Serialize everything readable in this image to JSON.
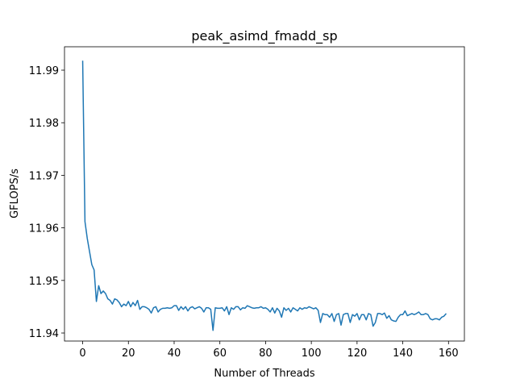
{
  "chart_data": {
    "type": "line",
    "title": "peak_asimd_fmadd_sp",
    "x_label": "Number of Threads",
    "y_label": "GFLOPS/s",
    "color": "#1f77b4",
    "x": [
      0,
      1,
      2,
      3,
      4,
      5,
      6,
      7,
      8,
      9,
      10,
      11,
      12,
      13,
      14,
      15,
      16,
      17,
      18,
      19,
      20,
      21,
      22,
      23,
      24,
      25,
      26,
      27,
      28,
      29,
      30,
      31,
      32,
      33,
      34,
      35,
      36,
      37,
      38,
      39,
      40,
      41,
      42,
      43,
      44,
      45,
      46,
      47,
      48,
      49,
      50,
      51,
      52,
      53,
      54,
      55,
      56,
      57,
      58,
      59,
      60,
      61,
      62,
      63,
      64,
      65,
      66,
      67,
      68,
      69,
      70,
      71,
      72,
      73,
      74,
      75,
      76,
      77,
      78,
      79,
      80,
      81,
      82,
      83,
      84,
      85,
      86,
      87,
      88,
      89,
      90,
      91,
      92,
      93,
      94,
      95,
      96,
      97,
      98,
      99,
      100,
      101,
      102,
      103,
      104,
      105,
      106,
      107,
      108,
      109,
      110,
      111,
      112,
      113,
      114,
      115,
      116,
      117,
      118,
      119,
      120,
      121,
      122,
      123,
      124,
      125,
      126,
      127,
      128,
      129,
      130,
      131,
      132,
      133,
      134,
      135,
      136,
      137,
      138,
      139,
      140,
      141,
      142,
      143,
      144,
      145,
      146,
      147,
      148,
      149,
      150,
      151,
      152,
      153,
      154,
      155,
      156,
      157,
      158,
      159
    ],
    "values": [
      11.9918,
      11.9612,
      11.958,
      11.9555,
      11.953,
      11.952,
      11.946,
      11.949,
      11.9475,
      11.948,
      11.9475,
      11.9465,
      11.9462,
      11.9455,
      11.9465,
      11.9463,
      11.9458,
      11.945,
      11.9455,
      11.9452,
      11.946,
      11.945,
      11.9458,
      11.9452,
      11.9462,
      11.9445,
      11.945,
      11.945,
      11.9448,
      11.9445,
      11.9438,
      11.9448,
      11.945,
      11.944,
      11.9445,
      11.9447,
      11.9447,
      11.9448,
      11.9447,
      11.9448,
      11.9452,
      11.9452,
      11.9443,
      11.945,
      11.9445,
      11.945,
      11.9442,
      11.9448,
      11.945,
      11.9446,
      11.9448,
      11.945,
      11.9447,
      11.944,
      11.9448,
      11.9448,
      11.9445,
      11.9405,
      11.9448,
      11.9447,
      11.9447,
      11.9448,
      11.9442,
      11.945,
      11.9435,
      11.9448,
      11.9445,
      11.945,
      11.945,
      11.9444,
      11.9448,
      11.9447,
      11.9452,
      11.945,
      11.9448,
      11.9447,
      11.9448,
      11.9448,
      11.945,
      11.9447,
      11.9448,
      11.9445,
      11.944,
      11.9448,
      11.9438,
      11.9447,
      11.9442,
      11.943,
      11.9448,
      11.9443,
      11.9447,
      11.944,
      11.9448,
      11.9445,
      11.9442,
      11.9448,
      11.9445,
      11.9448,
      11.9447,
      11.945,
      11.9448,
      11.9446,
      11.9448,
      11.9443,
      11.942,
      11.9437,
      11.9435,
      11.9435,
      11.943,
      11.9437,
      11.9422,
      11.9435,
      11.9437,
      11.9415,
      11.9435,
      11.9437,
      11.9437,
      11.942,
      11.9435,
      11.9432,
      11.9437,
      11.9425,
      11.9435,
      11.9435,
      11.9425,
      11.9437,
      11.9435,
      11.9413,
      11.942,
      11.9437,
      11.9437,
      11.9435,
      11.9438,
      11.9428,
      11.9433,
      11.9425,
      11.9423,
      11.9422,
      11.943,
      11.9435,
      11.9435,
      11.9442,
      11.9433,
      11.9435,
      11.9437,
      11.9435,
      11.9437,
      11.944,
      11.9435,
      11.9435,
      11.9437,
      11.9435,
      11.9427,
      11.9425,
      11.9427,
      11.9427,
      11.9425,
      11.943,
      11.9432,
      11.9437
    ],
    "xlim": [
      -7.95,
      166.95
    ],
    "ylim": [
      11.93847,
      11.99445
    ],
    "xticks": [
      0,
      20,
      40,
      60,
      80,
      100,
      120,
      140,
      160
    ],
    "yticks": [
      11.94,
      11.95,
      11.96,
      11.97,
      11.98,
      11.99
    ]
  }
}
